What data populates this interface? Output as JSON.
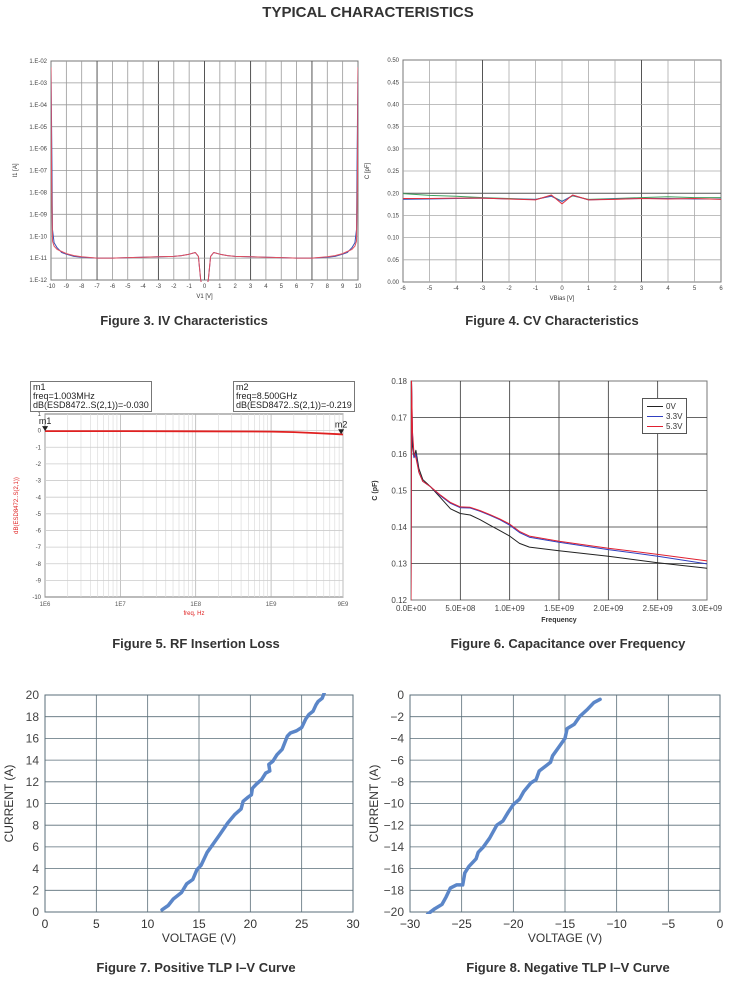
{
  "page_title": "TYPICAL CHARACTERISTICS",
  "chart_data": [
    {
      "type": "line",
      "id": "fig3",
      "caption": "Figure 3. IV Characteristics",
      "xlabel": "V1 [V]",
      "ylabel": "I1 [A]",
      "yscale": "log",
      "xlim": [
        -10,
        10
      ],
      "ylim": [
        1e-12,
        0.01
      ],
      "xticks": [
        "-10",
        "-9",
        "-8",
        "-7",
        "-6",
        "-5",
        "-4",
        "-3",
        "-2",
        "-1",
        "0",
        "1",
        "2",
        "3",
        "4",
        "5",
        "6",
        "7",
        "8",
        "9",
        "10"
      ],
      "yticks": [
        "1.E-12",
        "1.E-11",
        "1.E-10",
        "1.E-09",
        "1.E-08",
        "1.E-07",
        "1.E-06",
        "1.E-05",
        "1.E-04",
        "1.E-03",
        "1.E-02"
      ],
      "grid": true,
      "series": [
        {
          "name": "blue",
          "color": "#3a4fb0",
          "x": [
            -10,
            -9.95,
            -9.9,
            -9.8,
            -9.6,
            -9.3,
            -9,
            -8.5,
            -8,
            -7,
            -6,
            -5,
            -4,
            -3,
            -2,
            -1.5,
            -1,
            -0.6,
            -0.4,
            -0.25,
            -0.15,
            0.15,
            0.25,
            0.4,
            0.6,
            1,
            1.5,
            2,
            3,
            4,
            5,
            6,
            7,
            8,
            8.5,
            9,
            9.3,
            9.6,
            9.8,
            9.9,
            9.95,
            10
          ],
          "y": [
            0.005,
            1e-06,
            2e-10,
            5e-11,
            3e-11,
            1.8e-11,
            1.5e-11,
            1.2e-11,
            1.1e-11,
            1e-11,
            1e-11,
            1.05e-11,
            1.1e-11,
            1.15e-11,
            1.2e-11,
            1.3e-11,
            1.5e-11,
            1.8e-11,
            1.2e-11,
            1e-12,
            5e-13,
            5e-13,
            1e-12,
            1.2e-11,
            1.8e-11,
            1.5e-11,
            1.3e-11,
            1.2e-11,
            1.15e-11,
            1.1e-11,
            1.05e-11,
            1e-11,
            1e-11,
            1.1e-11,
            1.2e-11,
            1.5e-11,
            1.8e-11,
            3e-11,
            5e-11,
            2e-10,
            1e-06,
            0.005
          ]
        },
        {
          "name": "red",
          "color": "#e05060",
          "x": [
            -10,
            -9.97,
            -9.9,
            -9.8,
            -9.6,
            -9.3,
            -9,
            -8.5,
            -8,
            -7,
            -6,
            -5,
            -4,
            -3,
            -2,
            -1.5,
            -1,
            -0.6,
            -0.4,
            -0.25,
            -0.15,
            0.15,
            0.25,
            0.4,
            0.6,
            1,
            1.5,
            2,
            3,
            4,
            5,
            6,
            7,
            8,
            8.5,
            9,
            9.3,
            9.6,
            9.8,
            9.9,
            9.97,
            10
          ],
          "y": [
            0.005,
            1e-07,
            6e-11,
            3.5e-11,
            2.5e-11,
            2e-11,
            1.6e-11,
            1.3e-11,
            1.15e-11,
            1e-11,
            1e-11,
            1.05e-11,
            1.1e-11,
            1.15e-11,
            1.2e-11,
            1.3e-11,
            1.5e-11,
            1.8e-11,
            1.2e-11,
            1e-12,
            5e-13,
            5e-13,
            1e-12,
            1.2e-11,
            1.8e-11,
            1.5e-11,
            1.3e-11,
            1.2e-11,
            1.15e-11,
            1.1e-11,
            1.05e-11,
            1e-11,
            1e-11,
            1.15e-11,
            1.3e-11,
            1.6e-11,
            2e-11,
            2.5e-11,
            3.5e-11,
            6e-11,
            1e-07,
            0.005
          ]
        }
      ]
    },
    {
      "type": "line",
      "id": "fig4",
      "caption": "Figure 4. CV Characteristics",
      "xlabel": "VBias [V]",
      "ylabel": "C [pF]",
      "xlim": [
        -6,
        6
      ],
      "ylim": [
        0,
        0.5
      ],
      "xticks": [
        "-6",
        "-5",
        "-4",
        "-3",
        "-2",
        "-1",
        "0",
        "1",
        "2",
        "3",
        "4",
        "5",
        "6"
      ],
      "yticks": [
        "0.00",
        "0.05",
        "0.10",
        "0.15",
        "0.20",
        "0.25",
        "0.30",
        "0.35",
        "0.40",
        "0.45",
        "0.50"
      ],
      "grid": true,
      "series": [
        {
          "name": "green",
          "color": "#40a060",
          "x": [
            -6,
            -5,
            -4,
            -3,
            -2,
            -1,
            -0.4,
            0,
            0.4,
            1,
            2,
            3,
            4,
            5,
            6
          ],
          "y": [
            0.199,
            0.195,
            0.193,
            0.19,
            0.188,
            0.186,
            0.194,
            0.182,
            0.194,
            0.186,
            0.188,
            0.19,
            0.192,
            0.19,
            0.19
          ]
        },
        {
          "name": "blue",
          "color": "#4060c0",
          "x": [
            -6,
            -5,
            -4,
            -3,
            -2,
            -1,
            -0.4,
            0,
            0.4,
            1,
            2,
            3,
            4,
            5,
            6
          ],
          "y": [
            0.186,
            0.187,
            0.188,
            0.189,
            0.187,
            0.186,
            0.193,
            0.181,
            0.195,
            0.185,
            0.187,
            0.188,
            0.188,
            0.187,
            0.187
          ]
        },
        {
          "name": "red",
          "color": "#e03040",
          "x": [
            -6,
            -5,
            -4,
            -3,
            -2,
            -1,
            -0.4,
            0,
            0.4,
            1,
            2,
            3,
            4,
            5,
            6
          ],
          "y": [
            0.188,
            0.188,
            0.189,
            0.189,
            0.187,
            0.185,
            0.196,
            0.176,
            0.196,
            0.185,
            0.186,
            0.188,
            0.187,
            0.188,
            0.186
          ]
        }
      ]
    },
    {
      "type": "line",
      "id": "fig5",
      "caption": "Figure 5. RF Insertion Loss",
      "xlabel": "freq, Hz",
      "ylabel": "dB(ESD8472..S(2,1))",
      "xscale": "log",
      "xlim": [
        1000000.0,
        9000000000.0
      ],
      "ylim": [
        -10,
        1
      ],
      "xticks": [
        "1E6",
        "1E7",
        "1E8",
        "1E9",
        "9E9"
      ],
      "yticks": [
        "-10",
        "-9",
        "-8",
        "-7",
        "-6",
        "-5",
        "-4",
        "-3",
        "-2",
        "-1",
        "0",
        "1"
      ],
      "grid": true,
      "markers": [
        {
          "id": "m1",
          "label": "m1",
          "lines": [
            "m1",
            "freq=1.003MHz",
            "dB(ESD8472..S(2,1))=-0.030"
          ],
          "freq_hz": 1003000.0,
          "db": -0.03
        },
        {
          "id": "m2",
          "label": "m2",
          "lines": [
            "m2",
            "freq=8.500GHz",
            "dB(ESD8472..S(2,1))=-0.219"
          ],
          "freq_hz": 8500000000.0,
          "db": -0.219
        }
      ],
      "series": [
        {
          "name": "S21",
          "color": "#e02020",
          "x": [
            1000000.0,
            10000000.0,
            100000000.0,
            1000000000.0,
            2000000000.0,
            4000000000.0,
            8500000000.0,
            9000000000.0
          ],
          "y": [
            -0.03,
            -0.03,
            -0.04,
            -0.06,
            -0.09,
            -0.15,
            -0.219,
            -0.23
          ]
        }
      ]
    },
    {
      "type": "line",
      "id": "fig6",
      "caption": "Figure 6. Capacitance over Frequency",
      "xlabel": "Frequency",
      "ylabel": "C (pF)",
      "xlim": [
        0,
        3000000000.0
      ],
      "ylim": [
        0.12,
        0.18
      ],
      "xticks": [
        "0.0E+00",
        "5.0E+08",
        "1.0E+09",
        "1.5E+09",
        "2.0E+09",
        "2.5E+09",
        "3.0E+09"
      ],
      "yticks": [
        "0.12",
        "0.13",
        "0.14",
        "0.15",
        "0.16",
        "0.17",
        "0.18"
      ],
      "grid": true,
      "legend_position": "top-right",
      "series": [
        {
          "name": "0V",
          "color": "#222222",
          "x": [
            0,
            5000000.0,
            15000000.0,
            30000000.0,
            50000000.0,
            80000000.0,
            120000000.0,
            200000000.0,
            300000000.0,
            400000000.0,
            500000000.0,
            600000000.0,
            700000000.0,
            800000000.0,
            900000000.0,
            1000000000.0,
            1100000000.0,
            1200000000.0,
            1500000000.0,
            2000000000.0,
            2500000000.0,
            3000000000.0
          ],
          "y": [
            0.12,
            0.18,
            0.162,
            0.159,
            0.161,
            0.156,
            0.153,
            0.151,
            0.148,
            0.145,
            0.1437,
            0.1433,
            0.142,
            0.1405,
            0.139,
            0.1375,
            0.1355,
            0.1345,
            0.1335,
            0.132,
            0.1302,
            0.1287
          ]
        },
        {
          "name": "3.3V",
          "color": "#3040c0",
          "x": [
            0,
            5000000.0,
            15000000.0,
            30000000.0,
            50000000.0,
            80000000.0,
            120000000.0,
            200000000.0,
            300000000.0,
            400000000.0,
            500000000.0,
            600000000.0,
            700000000.0,
            800000000.0,
            900000000.0,
            1000000000.0,
            1100000000.0,
            1200000000.0,
            1500000000.0,
            2000000000.0,
            2500000000.0,
            3000000000.0
          ],
          "y": [
            0.12,
            0.18,
            0.165,
            0.159,
            0.16,
            0.155,
            0.1525,
            0.151,
            0.1485,
            0.1465,
            0.1453,
            0.1452,
            0.1443,
            0.1432,
            0.142,
            0.1405,
            0.1385,
            0.1372,
            0.1358,
            0.1338,
            0.132,
            0.1299
          ]
        },
        {
          "name": "5.3V",
          "color": "#e02030",
          "x": [
            0,
            5000000.0,
            15000000.0,
            30000000.0,
            50000000.0,
            80000000.0,
            120000000.0,
            200000000.0,
            300000000.0,
            400000000.0,
            500000000.0,
            600000000.0,
            700000000.0,
            800000000.0,
            900000000.0,
            1000000000.0,
            1100000000.0,
            1200000000.0,
            1500000000.0,
            2000000000.0,
            2500000000.0,
            3000000000.0
          ],
          "y": [
            0.12,
            0.18,
            0.166,
            0.16,
            0.159,
            0.155,
            0.1525,
            0.151,
            0.1487,
            0.1467,
            0.1455,
            0.1454,
            0.1445,
            0.1434,
            0.1422,
            0.1408,
            0.1388,
            0.1375,
            0.1361,
            0.1342,
            0.1325,
            0.1307
          ]
        }
      ]
    },
    {
      "type": "line",
      "id": "fig7",
      "caption": "Figure 7. Positive TLP I–V Curve",
      "xlabel": "VOLTAGE (V)",
      "ylabel": "CURRENT (A)",
      "xlim": [
        0,
        30
      ],
      "ylim": [
        0,
        20
      ],
      "xticks": [
        "0",
        "5",
        "10",
        "15",
        "20",
        "25",
        "30"
      ],
      "yticks": [
        "0",
        "2",
        "4",
        "6",
        "8",
        "10",
        "12",
        "14",
        "16",
        "18",
        "20"
      ],
      "grid": true,
      "series": [
        {
          "name": "TLP+",
          "color": "#5b86c8",
          "x": [
            11.4,
            12.0,
            12.5,
            13.3,
            13.8,
            14.4,
            14.8,
            15.2,
            15.8,
            16.4,
            17.0,
            17.8,
            18.5,
            19.1,
            19.3,
            19.8,
            20.1,
            20.2,
            20.6,
            21.1,
            21.5,
            21.9,
            21.8,
            22.2,
            22.6,
            23.1,
            23.6,
            23.9,
            24.5,
            25.0,
            25.4,
            25.7,
            26.1,
            26.4,
            26.6,
            27.0,
            27.2
          ],
          "y": [
            0.2,
            0.6,
            1.2,
            1.8,
            2.6,
            3.0,
            3.9,
            4.3,
            5.5,
            6.3,
            7.1,
            8.2,
            9.0,
            9.5,
            10.2,
            10.6,
            10.8,
            11.4,
            11.8,
            12.2,
            12.8,
            13.0,
            13.6,
            13.9,
            14.5,
            15.0,
            16.2,
            16.5,
            16.7,
            17.0,
            17.8,
            18.2,
            18.5,
            19.1,
            19.4,
            19.7,
            20.2
          ]
        }
      ]
    },
    {
      "type": "line",
      "id": "fig8",
      "caption": "Figure 8. Negative TLP I–V Curve",
      "xlabel": "VOLTAGE (V)",
      "ylabel": "CURRENT (A)",
      "xlim": [
        -30,
        0
      ],
      "ylim": [
        -20,
        0
      ],
      "xticks": [
        "−30",
        "−25",
        "−20",
        "−15",
        "−10",
        "−5",
        "0"
      ],
      "yticks": [
        "−20",
        "−18",
        "−16",
        "−14",
        "−12",
        "−10",
        "−8",
        "−6",
        "−4",
        "−2",
        "0"
      ],
      "grid": true,
      "series": [
        {
          "name": "TLP-",
          "color": "#5b86c8",
          "x": [
            -28.3,
            -27.6,
            -26.9,
            -26.5,
            -26.1,
            -25.5,
            -24.9,
            -24.7,
            -24.3,
            -23.6,
            -23.4,
            -22.9,
            -22.3,
            -21.6,
            -21.0,
            -20.5,
            -20.0,
            -19.4,
            -19.0,
            -18.3,
            -17.8,
            -17.5,
            -16.8,
            -16.4,
            -16.2,
            -15.6,
            -15.0,
            -14.8,
            -14.1,
            -13.6,
            -12.8,
            -12.2,
            -11.6
          ],
          "y": [
            -20.2,
            -19.7,
            -19.3,
            -18.6,
            -17.8,
            -17.5,
            -17.5,
            -16.4,
            -15.8,
            -15.1,
            -14.5,
            -14.0,
            -13.2,
            -12.0,
            -11.6,
            -10.8,
            -10.1,
            -9.6,
            -8.9,
            -8.1,
            -7.8,
            -7.0,
            -6.5,
            -6.2,
            -5.6,
            -4.8,
            -4.0,
            -3.1,
            -2.7,
            -2.0,
            -1.3,
            -0.7,
            -0.4
          ]
        }
      ]
    }
  ]
}
